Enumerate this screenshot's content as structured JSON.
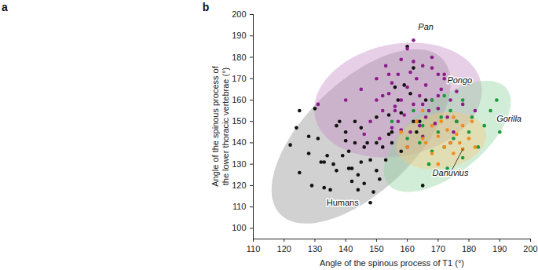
{
  "panel_a": {
    "label": "a"
  },
  "chart_data": {
    "type": "scatter",
    "panel_label": "b",
    "x_label": "Angle of the spinous process of T1 (°)",
    "y_label": "Angle of the spinous process of\nthe lower thoracic vertebrae (°)",
    "xlim": [
      110,
      200
    ],
    "xticks": [
      110,
      120,
      130,
      140,
      150,
      160,
      170,
      180,
      190,
      200
    ],
    "ylim": [
      95,
      200
    ],
    "yticks": [
      100,
      110,
      120,
      130,
      140,
      150,
      160,
      170,
      180,
      190,
      200
    ],
    "grid": false,
    "series": [
      {
        "name": "Humans",
        "color": "#111111",
        "ellipse_color": "#8c8c8c",
        "marker": "circle",
        "label_at": [
          139,
          112
        ],
        "ellipse": {
          "center": [
            145,
            143
          ],
          "axis1": [
            22,
            40
          ],
          "axis2": [
            -19,
            8
          ]
        },
        "x": [
          122,
          124,
          125,
          128,
          129,
          130,
          131,
          132,
          133,
          134,
          135,
          136,
          137,
          138,
          139,
          140,
          140,
          141,
          142,
          142,
          143,
          143,
          144,
          144,
          145,
          145,
          146,
          147,
          148,
          148,
          149,
          150,
          150,
          151,
          152,
          153,
          154,
          155,
          155,
          156,
          157,
          158,
          159,
          160,
          161,
          162,
          163,
          164,
          165,
          166,
          125,
          128,
          133,
          137,
          141,
          146,
          150,
          154,
          158,
          162
        ],
        "values": [
          139,
          147,
          126,
          135,
          120,
          156,
          142,
          131,
          119,
          134,
          118,
          130,
          127,
          150,
          134,
          141,
          145,
          136,
          128,
          122,
          140,
          150,
          118,
          125,
          131,
          147,
          121,
          140,
          112,
          132,
          117,
          140,
          127,
          123,
          138,
          132,
          153,
          145,
          140,
          166,
          160,
          154,
          167,
          185,
          163,
          150,
          145,
          150,
          120,
          160,
          155,
          143,
          131,
          148,
          128,
          138,
          152,
          144,
          136,
          175
        ]
      },
      {
        "name": "Pan",
        "color": "#8b1a8b",
        "ellipse_color": "#c48ac4",
        "marker": "circle",
        "label_at": [
          166,
          194
        ],
        "ellipse": {
          "center": [
            157,
            160
          ],
          "axis1": [
            26,
            12
          ],
          "axis2": [
            -8,
            24
          ]
        },
        "x": [
          131,
          140,
          145,
          148,
          150,
          151,
          152,
          153,
          154,
          155,
          155,
          156,
          157,
          157,
          158,
          158,
          159,
          160,
          160,
          161,
          161,
          162,
          162,
          163,
          163,
          164,
          165,
          165,
          166,
          167,
          168,
          168,
          169,
          170,
          170,
          171,
          172,
          173,
          174,
          175,
          176,
          178,
          180,
          182,
          150,
          154,
          158,
          162,
          166,
          170,
          174,
          146,
          156,
          164,
          168,
          160,
          152,
          172,
          176,
          165
        ],
        "values": [
          158,
          160,
          165,
          150,
          170,
          142,
          155,
          176,
          163,
          147,
          168,
          157,
          172,
          150,
          179,
          160,
          153,
          184,
          166,
          173,
          145,
          188,
          158,
          170,
          150,
          162,
          176,
          143,
          167,
          155,
          180,
          160,
          149,
          172,
          156,
          165,
          170,
          152,
          160,
          145,
          164,
          158,
          168,
          155,
          160,
          172,
          146,
          178,
          152,
          162,
          140,
          144,
          155,
          148,
          175,
          138,
          162,
          172,
          150,
          158
        ]
      },
      {
        "name": "Gorilla",
        "color": "#1a9a3a",
        "ellipse_color": "#8fd19b",
        "marker": "circle",
        "label_at": [
          193,
          151
        ],
        "ellipse": {
          "center": [
            173,
            143
          ],
          "axis1": [
            18,
            24
          ],
          "axis2": [
            -10,
            10
          ]
        },
        "x": [
          155,
          160,
          162,
          165,
          167,
          168,
          170,
          171,
          172,
          173,
          174,
          175,
          176,
          178,
          178,
          180,
          181,
          183,
          185,
          187,
          189,
          190,
          168,
          172,
          164
        ],
        "values": [
          150,
          142,
          155,
          148,
          130,
          160,
          145,
          152,
          138,
          128,
          155,
          142,
          150,
          160,
          133,
          145,
          152,
          138,
          148,
          155,
          160,
          145,
          136,
          162,
          140
        ]
      },
      {
        "name": "Pongo",
        "color": "#f08c1e",
        "ellipse_color": "#f5c77a",
        "marker": "circle",
        "label_at": [
          177,
          169
        ],
        "ellipse": {
          "center": [
            171,
            141
          ],
          "axis1": [
            14,
            6
          ],
          "axis2": [
            -4,
            12
          ]
        },
        "x": [
          158,
          160,
          163,
          165,
          166,
          168,
          168,
          170,
          171,
          172,
          173,
          174,
          175,
          175,
          176,
          177,
          178,
          180,
          181,
          182,
          170,
          165
        ],
        "values": [
          145,
          138,
          150,
          142,
          140,
          148,
          135,
          143,
          150,
          138,
          146,
          140,
          152,
          135,
          144,
          140,
          148,
          142,
          150,
          138,
          130,
          155
        ]
      },
      {
        "name": "Danuvius",
        "color": "#e07b00",
        "marker": "circle",
        "label_at": [
          174,
          126
        ],
        "x": [
          178
        ],
        "values": [
          137
        ]
      }
    ]
  }
}
